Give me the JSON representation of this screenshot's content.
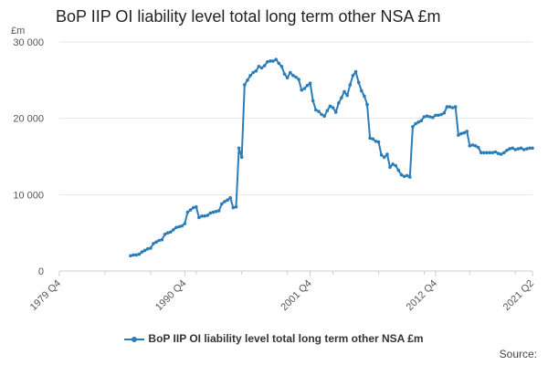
{
  "title": "BoP IIP OI liability level total long term other NSA £m",
  "unit_label": "£m",
  "source_label": "Source:",
  "colors": {
    "series": "#2a7db8",
    "grid": "#e6e6e6",
    "axis": "#cccccc"
  },
  "chart_data": {
    "type": "line",
    "title": "BoP IIP OI liability level total long term other NSA £m",
    "ylabel": "£m",
    "xlabel": "",
    "ylim": [
      0,
      30000
    ],
    "y_ticks": [
      0,
      10000,
      20000,
      30000
    ],
    "y_tick_labels": [
      "0",
      "10 000",
      "20 000",
      "30 000"
    ],
    "x_range": [
      "1979 Q4",
      "2021 Q2"
    ],
    "x_ticks": [
      "1979 Q4",
      "1990 Q4",
      "2001 Q4",
      "2012 Q4",
      "2021 Q2"
    ],
    "grid": "horizontal",
    "legend_position": "bottom",
    "series": [
      {
        "name": "BoP IIP OI liability level total long term other NSA £m",
        "points": [
          [
            "1986 Q1",
            2000
          ],
          [
            "1986 Q2",
            2100
          ],
          [
            "1986 Q3",
            2100
          ],
          [
            "1986 Q4",
            2200
          ],
          [
            "1987 Q1",
            2500
          ],
          [
            "1987 Q2",
            2700
          ],
          [
            "1987 Q3",
            2900
          ],
          [
            "1987 Q4",
            3000
          ],
          [
            "1988 Q1",
            3600
          ],
          [
            "1988 Q2",
            3800
          ],
          [
            "1988 Q3",
            4000
          ],
          [
            "1988 Q4",
            4100
          ],
          [
            "1989 Q1",
            4800
          ],
          [
            "1989 Q2",
            5000
          ],
          [
            "1989 Q3",
            5100
          ],
          [
            "1989 Q4",
            5400
          ],
          [
            "1990 Q1",
            5700
          ],
          [
            "1990 Q2",
            5800
          ],
          [
            "1990 Q3",
            5900
          ],
          [
            "1990 Q4",
            6200
          ],
          [
            "1991 Q1",
            7700
          ],
          [
            "1991 Q2",
            8000
          ],
          [
            "1991 Q3",
            8300
          ],
          [
            "1991 Q4",
            8400
          ],
          [
            "1992 Q1",
            7000
          ],
          [
            "1992 Q2",
            7200
          ],
          [
            "1992 Q3",
            7200
          ],
          [
            "1992 Q4",
            7300
          ],
          [
            "1993 Q1",
            7600
          ],
          [
            "1993 Q2",
            7700
          ],
          [
            "1993 Q3",
            7800
          ],
          [
            "1993 Q4",
            7900
          ],
          [
            "1994 Q1",
            8800
          ],
          [
            "1994 Q2",
            9100
          ],
          [
            "1994 Q3",
            9300
          ],
          [
            "1994 Q4",
            9600
          ],
          [
            "1995 Q1",
            8300
          ],
          [
            "1995 Q2",
            8400
          ],
          [
            "1995 Q3",
            16100
          ],
          [
            "1995 Q4",
            14900
          ],
          [
            "1996 Q1",
            24400
          ],
          [
            "1996 Q2",
            25000
          ],
          [
            "1996 Q3",
            25600
          ],
          [
            "1996 Q4",
            26000
          ],
          [
            "1997 Q1",
            26200
          ],
          [
            "1997 Q2",
            26800
          ],
          [
            "1997 Q3",
            26600
          ],
          [
            "1997 Q4",
            26900
          ],
          [
            "1998 Q1",
            27400
          ],
          [
            "1998 Q2",
            27500
          ],
          [
            "1998 Q3",
            27500
          ],
          [
            "1998 Q4",
            27700
          ],
          [
            "1999 Q1",
            27200
          ],
          [
            "1999 Q2",
            26800
          ],
          [
            "1999 Q3",
            25800
          ],
          [
            "1999 Q4",
            25300
          ],
          [
            "2000 Q1",
            26000
          ],
          [
            "2000 Q2",
            25600
          ],
          [
            "2000 Q3",
            25400
          ],
          [
            "2000 Q4",
            25100
          ],
          [
            "2001 Q1",
            23700
          ],
          [
            "2001 Q2",
            23900
          ],
          [
            "2001 Q3",
            24300
          ],
          [
            "2001 Q4",
            24600
          ],
          [
            "2002 Q1",
            22300
          ],
          [
            "2002 Q2",
            21100
          ],
          [
            "2002 Q3",
            20900
          ],
          [
            "2002 Q4",
            20500
          ],
          [
            "2003 Q1",
            20300
          ],
          [
            "2003 Q2",
            21000
          ],
          [
            "2003 Q3",
            21600
          ],
          [
            "2003 Q4",
            21400
          ],
          [
            "2004 Q1",
            20800
          ],
          [
            "2004 Q2",
            22000
          ],
          [
            "2004 Q3",
            22700
          ],
          [
            "2004 Q4",
            23500
          ],
          [
            "2005 Q1",
            23000
          ],
          [
            "2005 Q2",
            24400
          ],
          [
            "2005 Q3",
            25600
          ],
          [
            "2005 Q4",
            26100
          ],
          [
            "2006 Q1",
            24700
          ],
          [
            "2006 Q2",
            23600
          ],
          [
            "2006 Q3",
            22900
          ],
          [
            "2006 Q4",
            21800
          ],
          [
            "2007 Q1",
            17400
          ],
          [
            "2007 Q2",
            17300
          ],
          [
            "2007 Q3",
            17000
          ],
          [
            "2007 Q4",
            16900
          ],
          [
            "2008 Q1",
            15200
          ],
          [
            "2008 Q2",
            14900
          ],
          [
            "2008 Q3",
            15300
          ],
          [
            "2008 Q4",
            13600
          ],
          [
            "2009 Q1",
            14000
          ],
          [
            "2009 Q2",
            13800
          ],
          [
            "2009 Q3",
            13200
          ],
          [
            "2009 Q4",
            12600
          ],
          [
            "2010 Q1",
            12400
          ],
          [
            "2010 Q2",
            12500
          ],
          [
            "2010 Q3",
            12300
          ],
          [
            "2010 Q4",
            18900
          ],
          [
            "2011 Q1",
            19300
          ],
          [
            "2011 Q2",
            19500
          ],
          [
            "2011 Q3",
            19700
          ],
          [
            "2011 Q4",
            20200
          ],
          [
            "2012 Q1",
            20300
          ],
          [
            "2012 Q2",
            20200
          ],
          [
            "2012 Q3",
            20100
          ],
          [
            "2012 Q4",
            20400
          ],
          [
            "2013 Q1",
            20400
          ],
          [
            "2013 Q2",
            20500
          ],
          [
            "2013 Q3",
            20700
          ],
          [
            "2013 Q4",
            21500
          ],
          [
            "2014 Q1",
            21500
          ],
          [
            "2014 Q2",
            21400
          ],
          [
            "2014 Q3",
            21500
          ],
          [
            "2014 Q4",
            17800
          ],
          [
            "2015 Q1",
            18000
          ],
          [
            "2015 Q2",
            18100
          ],
          [
            "2015 Q3",
            18300
          ],
          [
            "2015 Q4",
            16400
          ],
          [
            "2016 Q1",
            16500
          ],
          [
            "2016 Q2",
            16400
          ],
          [
            "2016 Q3",
            16200
          ],
          [
            "2016 Q4",
            15500
          ],
          [
            "2017 Q1",
            15500
          ],
          [
            "2017 Q2",
            15500
          ],
          [
            "2017 Q3",
            15500
          ],
          [
            "2017 Q4",
            15500
          ],
          [
            "2018 Q1",
            15600
          ],
          [
            "2018 Q2",
            15400
          ],
          [
            "2018 Q3",
            15300
          ],
          [
            "2018 Q4",
            15500
          ],
          [
            "2019 Q1",
            15800
          ],
          [
            "2019 Q2",
            16000
          ],
          [
            "2019 Q3",
            16100
          ],
          [
            "2019 Q4",
            15900
          ],
          [
            "2020 Q1",
            16000
          ],
          [
            "2020 Q2",
            16100
          ],
          [
            "2020 Q3",
            15900
          ],
          [
            "2020 Q4",
            16000
          ],
          [
            "2021 Q1",
            16100
          ],
          [
            "2021 Q2",
            16100
          ]
        ]
      }
    ]
  }
}
